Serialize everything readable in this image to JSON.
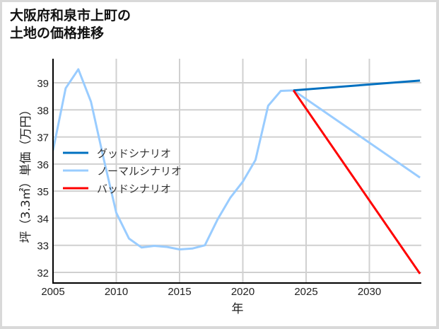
{
  "title": {
    "line1": "大阪府和泉市上町の",
    "line2": "土地の価格推移"
  },
  "chart_data": {
    "type": "line",
    "title": "大阪府和泉市上町の土地の価格推移",
    "xlabel": "年",
    "ylabel": "坪（3.3㎡）単価（万円）",
    "xlim": [
      2005,
      2034
    ],
    "ylim": [
      31.6,
      39.9
    ],
    "xticks": [
      2005,
      2010,
      2015,
      2020,
      2025,
      2030
    ],
    "yticks": [
      32,
      33,
      34,
      35,
      36,
      37,
      38,
      39
    ],
    "grid": true,
    "legend_position": "center-left",
    "series": [
      {
        "name": "グッドシナリオ",
        "color": "#0070c0",
        "x": [
          2024,
          2034
        ],
        "values": [
          38.72,
          39.08
        ]
      },
      {
        "name": "ノーマルシナリオ",
        "color": "#99ccff",
        "x": [
          2005,
          2006,
          2007,
          2008,
          2009,
          2010,
          2011,
          2012,
          2013,
          2014,
          2015,
          2016,
          2017,
          2018,
          2019,
          2020,
          2021,
          2022,
          2023,
          2024,
          2034
        ],
        "values": [
          36.5,
          38.8,
          39.5,
          38.3,
          36.2,
          34.2,
          33.25,
          32.92,
          32.98,
          32.94,
          32.85,
          32.88,
          33.0,
          33.95,
          34.75,
          35.35,
          36.15,
          38.15,
          38.7,
          38.72,
          35.5
        ]
      },
      {
        "name": "バッドシナリオ",
        "color": "#ff0000",
        "x": [
          2024,
          2034
        ],
        "values": [
          38.72,
          31.95
        ]
      }
    ]
  }
}
